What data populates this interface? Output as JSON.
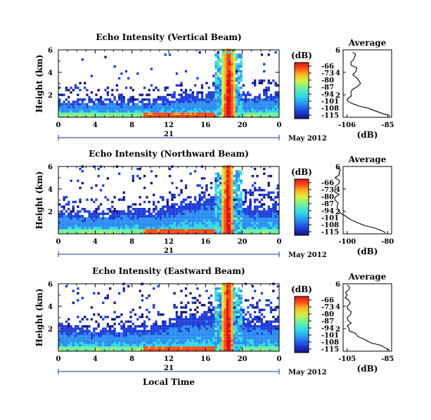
{
  "figure": {
    "xlabel": "Local Time",
    "x_ticklabels": [
      "0",
      "4",
      "8",
      "12",
      "16",
      "20",
      "0"
    ],
    "date_label": "May 2012",
    "day_label": "21",
    "colorbar_unit": "(dB)",
    "colorbar_ticklabels": [
      "-66",
      "-73",
      "-80",
      "-87",
      "-94",
      "-101",
      "-108",
      "-115"
    ],
    "colorscale": [
      "#16127a",
      "#1e3cd8",
      "#2a8cf0",
      "#2ed8e8",
      "#6ef0a0",
      "#d8f040",
      "#ffb020",
      "#ff4a14",
      "#d8101c"
    ],
    "avg_title": "Average",
    "avg_xlabel": "(dB)"
  },
  "panels": [
    {
      "title": "Echo Intensity (Vertical Beam)",
      "ylabel": "Height (km)",
      "y_ticklabels": [
        "2",
        "4",
        "6"
      ],
      "avg_y_ticklabels": [
        "2",
        "4",
        "6"
      ],
      "avg_x_ticklabels": [
        "-106",
        "-85"
      ]
    },
    {
      "title": "Echo Intensity (Northward Beam)",
      "ylabel": "Height (km)",
      "y_ticklabels": [
        "2",
        "4",
        "6"
      ],
      "avg_y_ticklabels": [
        "2",
        "4",
        "6"
      ],
      "avg_x_ticklabels": [
        "-100",
        "-80"
      ]
    },
    {
      "title": "Echo Intensity (Eastward Beam)",
      "ylabel": "Height (km)",
      "y_ticklabels": [
        "2",
        "4",
        "6"
      ],
      "avg_y_ticklabels": [
        "2",
        "4",
        "6"
      ],
      "avg_x_ticklabels": [
        "-105",
        "-85"
      ]
    }
  ],
  "chart_data": [
    {
      "type": "heatmap",
      "title": "Echo Intensity (Vertical Beam)",
      "ylabel": "Height (km)",
      "xlabel": "Local Time",
      "xlim_hours": [
        0,
        24
      ],
      "ylim_km": [
        0,
        6
      ],
      "color_range_db": [
        -115,
        -66
      ],
      "boundary_layer_top_km": [
        [
          0,
          1.6
        ],
        [
          4,
          1.5
        ],
        [
          6,
          1.7
        ],
        [
          8,
          1.5
        ],
        [
          10,
          1.6
        ],
        [
          12,
          1.9
        ],
        [
          14,
          2.0
        ],
        [
          16,
          2.1
        ],
        [
          17,
          2.6
        ],
        [
          19,
          2.4
        ],
        [
          20,
          2.0
        ],
        [
          22,
          2.1
        ],
        [
          24,
          2.3
        ]
      ],
      "strong_echo_column_hours": [
        17.7,
        19.0
      ],
      "average_profile": {
        "x_db": [
          -84,
          -87,
          -95,
          -103,
          -106,
          -104,
          -101,
          -100,
          -103,
          -101,
          -104,
          -102,
          -103
        ],
        "y_km": [
          0.1,
          0.3,
          0.8,
          1.2,
          1.6,
          2.2,
          2.7,
          3.3,
          3.8,
          4.4,
          4.9,
          5.4,
          5.8
        ]
      }
    },
    {
      "type": "heatmap",
      "title": "Echo Intensity (Northward Beam)",
      "ylabel": "Height (km)",
      "xlabel": "Local Time",
      "xlim_hours": [
        0,
        24
      ],
      "ylim_km": [
        0,
        6
      ],
      "color_range_db": [
        -115,
        -66
      ],
      "boundary_layer_top_km": [
        [
          0,
          2.1
        ],
        [
          4,
          1.9
        ],
        [
          6,
          2.0
        ],
        [
          8,
          2.2
        ],
        [
          10,
          2.1
        ],
        [
          12,
          2.5
        ],
        [
          14,
          3.0
        ],
        [
          16,
          3.3
        ],
        [
          17,
          3.7
        ],
        [
          19,
          3.1
        ],
        [
          20,
          2.6
        ],
        [
          22,
          2.4
        ],
        [
          24,
          2.6
        ]
      ],
      "strong_echo_column_hours": [
        17.6,
        18.9
      ],
      "average_profile": {
        "x_db": [
          -81,
          -86,
          -95,
          -101,
          -104,
          -105,
          -106,
          -104,
          -106,
          -104,
          -106,
          -104,
          -105
        ],
        "y_km": [
          0.1,
          0.5,
          1.0,
          1.6,
          2.0,
          2.5,
          3.0,
          3.5,
          4.0,
          4.5,
          5.0,
          5.5,
          5.9
        ]
      }
    },
    {
      "type": "heatmap",
      "title": "Echo Intensity (Eastward Beam)",
      "ylabel": "Height (km)",
      "xlabel": "Local Time",
      "xlim_hours": [
        0,
        24
      ],
      "ylim_km": [
        0,
        6
      ],
      "color_range_db": [
        -115,
        -66
      ],
      "boundary_layer_top_km": [
        [
          0,
          2.2
        ],
        [
          4,
          2.1
        ],
        [
          6,
          2.0
        ],
        [
          8,
          2.2
        ],
        [
          10,
          2.3
        ],
        [
          12,
          2.8
        ],
        [
          14,
          3.3
        ],
        [
          16,
          3.5
        ],
        [
          17,
          3.9
        ],
        [
          19,
          3.4
        ],
        [
          20,
          2.9
        ],
        [
          22,
          2.6
        ],
        [
          24,
          2.7
        ]
      ],
      "strong_echo_column_hours": [
        17.6,
        18.9
      ],
      "average_profile": {
        "x_db": [
          -84,
          -88,
          -96,
          -101,
          -104,
          -103,
          -105,
          -103,
          -105,
          -104,
          -105,
          -104,
          -105
        ],
        "y_km": [
          0.1,
          0.5,
          1.0,
          1.6,
          2.0,
          2.5,
          3.0,
          3.5,
          4.0,
          4.5,
          5.0,
          5.5,
          5.9
        ]
      }
    }
  ]
}
